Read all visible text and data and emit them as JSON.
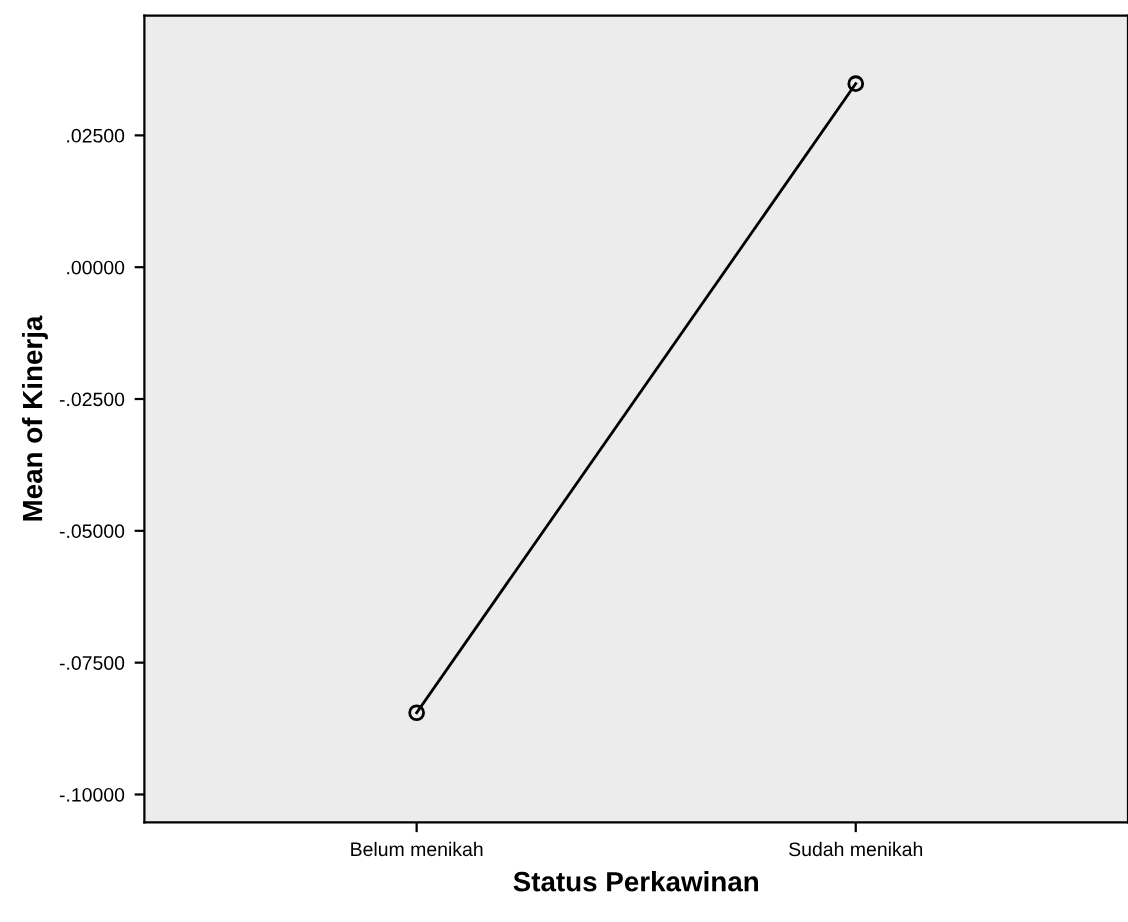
{
  "chart_data": {
    "type": "line",
    "xlabel": "Status Perkawinan",
    "ylabel": "Mean of Kinerja",
    "categories": [
      "Belum menikah",
      "Sudah menikah"
    ],
    "series": [
      {
        "color": "#000000",
        "values": [
          -0.0845,
          0.0348
        ]
      }
    ],
    "ylim": [
      -0.1053,
      0.0477
    ],
    "yticks": [
      {
        "value": 0.025,
        "label": ".02500"
      },
      {
        "value": 0,
        "label": ".00000"
      },
      {
        "value": -0.025,
        "label": "-.02500"
      },
      {
        "value": -0.05,
        "label": "-.05000"
      },
      {
        "value": -0.075,
        "label": "-.07500"
      },
      {
        "value": -0.1,
        "label": "-.10000"
      }
    ],
    "marker": "circle",
    "line_style": "solid",
    "grid": false,
    "legend": false
  }
}
